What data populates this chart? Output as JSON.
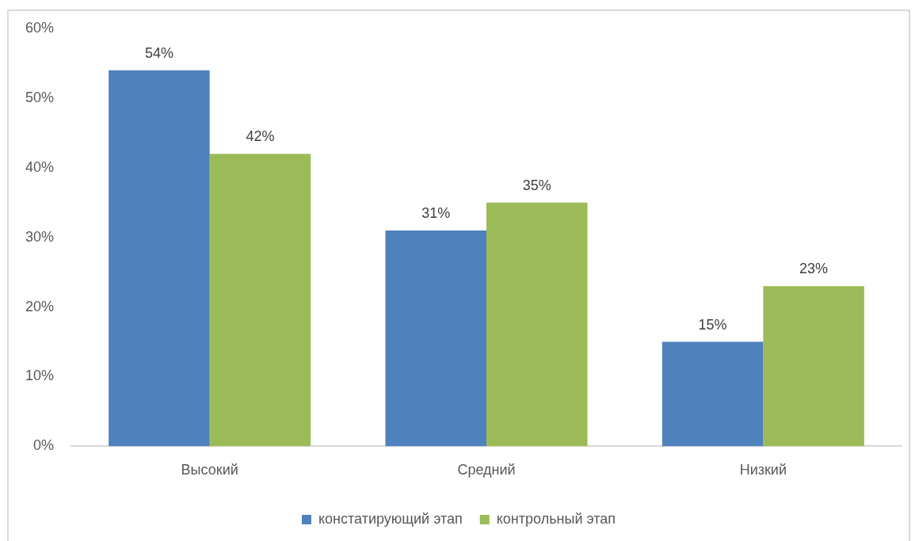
{
  "chart_data": {
    "type": "bar",
    "categories": [
      "Высокий",
      "Средний",
      "Низкий"
    ],
    "series": [
      {
        "name": "констатирующий этап",
        "color": "#4f81bd",
        "values": [
          54,
          31,
          15
        ],
        "value_labels": [
          "54%",
          "31%",
          "15%"
        ]
      },
      {
        "name": "контрольный этап",
        "color": "#9bbb59",
        "values": [
          42,
          35,
          23
        ],
        "value_labels": [
          "42%",
          "35%",
          "23%"
        ]
      }
    ],
    "ylim": [
      0,
      60
    ],
    "yticks": [
      {
        "value": 0,
        "label": "0%"
      },
      {
        "value": 10,
        "label": "10%"
      },
      {
        "value": 20,
        "label": "20%"
      },
      {
        "value": 30,
        "label": "30%"
      },
      {
        "value": 40,
        "label": "40%"
      },
      {
        "value": 50,
        "label": "50%"
      },
      {
        "value": 60,
        "label": "60%"
      }
    ],
    "grid": false,
    "legend": "bottom"
  }
}
